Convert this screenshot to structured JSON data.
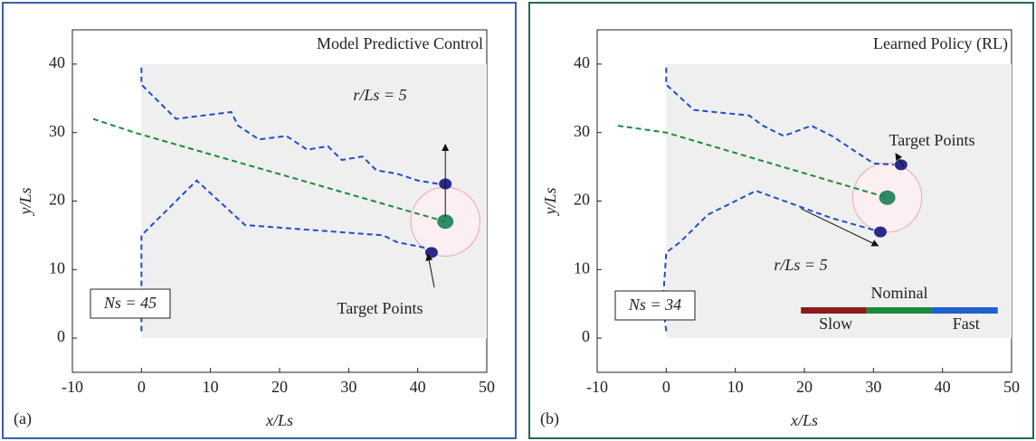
{
  "chart_data": [
    {
      "type": "trajectory",
      "panel_label": "(a)",
      "title": "Model Predictive Control",
      "title_color": "#2f4fa8",
      "frame_color": "#3b5ea8",
      "xlabel": "x/Ls",
      "ylabel": "y/Ls",
      "xlim": [
        -10,
        50
      ],
      "ylim": [
        -5,
        45
      ],
      "xticks": [
        -10,
        0,
        10,
        20,
        30,
        40,
        50
      ],
      "yticks": [
        0,
        10,
        20,
        30,
        40
      ],
      "series": [
        {
          "color": "#1f4fc8",
          "x": [
            0,
            0,
            5,
            13,
            14,
            17,
            21,
            24,
            27,
            29,
            32,
            34,
            37,
            40,
            43
          ],
          "values": [
            39.5,
            37,
            32,
            33,
            31,
            29,
            29.5,
            27.5,
            28,
            26,
            26.5,
            24.5,
            24,
            23,
            22.5
          ]
        },
        {
          "color": "#1f4fc8",
          "x": [
            0,
            0,
            1,
            8,
            15,
            35,
            37,
            42
          ],
          "values": [
            1,
            15,
            16,
            23,
            16.5,
            15,
            14,
            13
          ]
        },
        {
          "color": "#1a8a3c",
          "x": [
            -7,
            -1,
            44
          ],
          "values": [
            32,
            30,
            17
          ]
        }
      ],
      "targets": {
        "x": [
          44,
          42
        ],
        "y": [
          22.5,
          12.5
        ]
      },
      "circle": {
        "x": 44,
        "y": 17,
        "r": 5
      },
      "radius_label": "r/Ls = 5",
      "target_label": "Target Points",
      "count_label": "Ns = 45"
    },
    {
      "type": "trajectory",
      "panel_label": "(b)",
      "title": "Learned Policy (RL)",
      "title_color": "#1e6b4f",
      "frame_color": "#1e6b4f",
      "xlabel": "x/Ls",
      "ylabel": "y/Ls",
      "xlim": [
        -10,
        50
      ],
      "ylim": [
        -5,
        45
      ],
      "xticks": [
        -10,
        0,
        10,
        20,
        30,
        40,
        50
      ],
      "yticks": [
        0,
        10,
        20,
        30,
        40
      ],
      "series": [
        {
          "color": "#1f4fc8",
          "x": [
            0,
            0,
            4,
            12,
            14,
            17,
            21,
            24,
            27,
            30,
            33
          ],
          "values": [
            39.5,
            37,
            33.3,
            32.5,
            31,
            29.5,
            31,
            29.5,
            27.5,
            25.5,
            25.3
          ]
        },
        {
          "color": "#1f4fc8",
          "x": [
            0,
            -0.5,
            0,
            2,
            6,
            13,
            24,
            31
          ],
          "values": [
            1,
            5,
            12.5,
            14,
            18,
            21.5,
            17.5,
            15.5
          ]
        },
        {
          "color": "#1a8a3c",
          "x": [
            -7,
            0,
            32
          ],
          "values": [
            31,
            30,
            20.5
          ]
        }
      ],
      "targets": {
        "x": [
          34,
          31
        ],
        "y": [
          25.3,
          15.5
        ]
      },
      "circle": {
        "x": 32,
        "y": 20.5,
        "r": 5
      },
      "radius_label": "r/Ls = 5",
      "target_label": "Target Points",
      "count_label": "Ns = 34",
      "legend": [
        {
          "name": "Slow",
          "color": "#8b1a1a"
        },
        {
          "name": "Nominal",
          "color": "#1a8a3c"
        },
        {
          "name": "Fast",
          "color": "#1f5fd0"
        }
      ]
    }
  ]
}
